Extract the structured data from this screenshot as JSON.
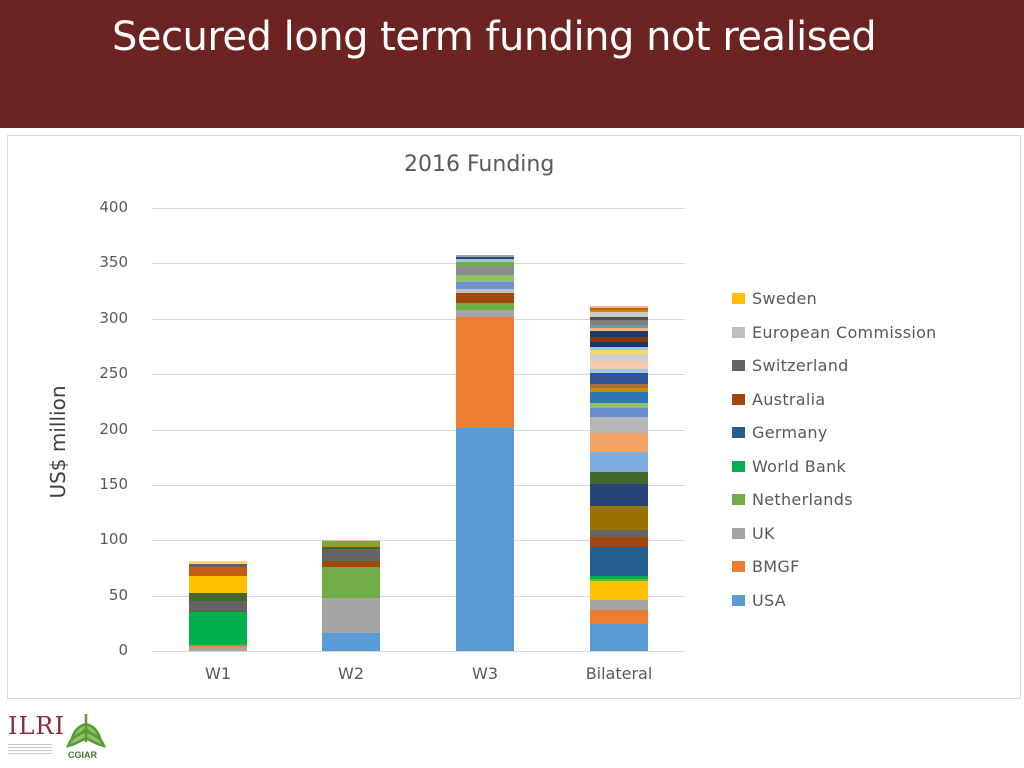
{
  "slide": {
    "title": "Secured long term funding not realised"
  },
  "chart_data": {
    "type": "bar",
    "stacked": true,
    "title": "2016 Funding",
    "xlabel": "",
    "ylabel": "US$ million",
    "ylim": [
      0,
      400
    ],
    "yticks": [
      0,
      50,
      100,
      150,
      200,
      250,
      300,
      350,
      400
    ],
    "grid": true,
    "legend_position": "right",
    "categories": [
      "W1",
      "W2",
      "W3",
      "Bilateral"
    ],
    "legend": [
      "Sweden",
      "European Commission",
      "Switzerland",
      "Australia",
      "Germany",
      "World Bank",
      "Netherlands",
      "UK",
      "BMGF",
      "USA"
    ],
    "colors": {
      "Sweden": "#ffc000",
      "European Commission": "#bfbfbf",
      "Switzerland": "#636363",
      "Australia": "#9e480e",
      "Germany": "#255e91",
      "World Bank": "#00b050",
      "Netherlands": "#70ad47",
      "UK": "#a5a5a5",
      "BMGF": "#ed7d31",
      "USA": "#5b9bd5"
    },
    "totals": [
      81,
      100,
      358,
      327
    ],
    "bars": [
      {
        "category": "W1",
        "segments": [
          {
            "name": "UK",
            "value": 4,
            "color": "#a5a5a5"
          },
          {
            "name": "BMGF",
            "value": 1,
            "color": "#ed7d31"
          },
          {
            "name": "World Bank",
            "value": 30,
            "color": "#00b050"
          },
          {
            "name": "Australia",
            "value": 1,
            "color": "#9e480e"
          },
          {
            "name": "Switzerland",
            "value": 9,
            "color": "#636363"
          },
          {
            "name": "other",
            "value": 7,
            "color": "#43682b"
          },
          {
            "name": "Sweden",
            "value": 16,
            "color": "#ffc000"
          },
          {
            "name": "other",
            "value": 8,
            "color": "#c55a11"
          },
          {
            "name": "other",
            "value": 3,
            "color": "#636363"
          },
          {
            "name": "other",
            "value": 2,
            "color": "#ffd966"
          }
        ]
      },
      {
        "category": "W2",
        "segments": [
          {
            "name": "USA",
            "value": 16,
            "color": "#5b9bd5"
          },
          {
            "name": "UK",
            "value": 32,
            "color": "#a5a5a5"
          },
          {
            "name": "Netherlands",
            "value": 28,
            "color": "#70ad47"
          },
          {
            "name": "Australia",
            "value": 5,
            "color": "#9e480e"
          },
          {
            "name": "Switzerland",
            "value": 11,
            "color": "#636363"
          },
          {
            "name": "other",
            "value": 2,
            "color": "#43682b"
          },
          {
            "name": "other",
            "value": 2,
            "color": "#bf9000"
          },
          {
            "name": "other",
            "value": 3,
            "color": "#70ad47"
          },
          {
            "name": "other",
            "value": 1,
            "color": "#f4b183"
          }
        ]
      },
      {
        "category": "W3",
        "segments": [
          {
            "name": "USA",
            "value": 201,
            "color": "#5b9bd5"
          },
          {
            "name": "BMGF",
            "value": 101,
            "color": "#ed7d31"
          },
          {
            "name": "UK",
            "value": 6,
            "color": "#a5a5a5"
          },
          {
            "name": "Netherlands",
            "value": 6,
            "color": "#70ad47"
          },
          {
            "name": "Australia",
            "value": 9,
            "color": "#9e480e"
          },
          {
            "name": "European Commission",
            "value": 4,
            "color": "#bfbfbf"
          },
          {
            "name": "other",
            "value": 6,
            "color": "#6f8fd8"
          },
          {
            "name": "other",
            "value": 7,
            "color": "#8fc167"
          },
          {
            "name": "Switzerland",
            "value": 8,
            "color": "#8c8c8c"
          },
          {
            "name": "other",
            "value": 3,
            "color": "#70ad47"
          },
          {
            "name": "other",
            "value": 3,
            "color": "#9dc3e6"
          },
          {
            "name": "other",
            "value": 2,
            "color": "#264478"
          },
          {
            "name": "other",
            "value": 2,
            "color": "#a5a5a5"
          }
        ]
      },
      {
        "category": "Bilateral",
        "segments": [
          {
            "name": "USA",
            "value": 24,
            "color": "#5b9bd5"
          },
          {
            "name": "BMGF",
            "value": 13,
            "color": "#ed7d31"
          },
          {
            "name": "UK",
            "value": 9,
            "color": "#a5a5a5"
          },
          {
            "name": "Sweden",
            "value": 17,
            "color": "#ffc000"
          },
          {
            "name": "Netherlands",
            "value": 2,
            "color": "#70ad47"
          },
          {
            "name": "World Bank",
            "value": 3,
            "color": "#00b050"
          },
          {
            "name": "Germany",
            "value": 26,
            "color": "#255e91"
          },
          {
            "name": "Australia",
            "value": 9,
            "color": "#9e480e"
          },
          {
            "name": "Switzerland",
            "value": 6,
            "color": "#636363"
          },
          {
            "name": "other",
            "value": 22,
            "color": "#997300"
          },
          {
            "name": "other",
            "value": 20,
            "color": "#264478"
          },
          {
            "name": "other",
            "value": 11,
            "color": "#43682b"
          },
          {
            "name": "other",
            "value": 18,
            "color": "#7cafdd"
          },
          {
            "name": "other",
            "value": 17,
            "color": "#f4a367"
          },
          {
            "name": "European Commission",
            "value": 14,
            "color": "#b7b7b7"
          },
          {
            "name": "other",
            "value": 9,
            "color": "#698ed0"
          },
          {
            "name": "other",
            "value": 4,
            "color": "#8cc168"
          },
          {
            "name": "other",
            "value": 10,
            "color": "#2e75b6"
          },
          {
            "name": "other",
            "value": 4,
            "color": "#bf9000"
          },
          {
            "name": "other",
            "value": 3,
            "color": "#a86e3c"
          },
          {
            "name": "other",
            "value": 10,
            "color": "#2f5597"
          },
          {
            "name": "other",
            "value": 4,
            "color": "#9dc3e6"
          },
          {
            "name": "other",
            "value": 7,
            "color": "#f8cbad"
          },
          {
            "name": "other",
            "value": 6,
            "color": "#d0cece"
          },
          {
            "name": "other",
            "value": 4,
            "color": "#ffd966"
          },
          {
            "name": "other",
            "value": 3,
            "color": "#9dc3e6"
          },
          {
            "name": "other",
            "value": 4,
            "color": "#1f3864"
          },
          {
            "name": "other",
            "value": 5,
            "color": "#843c0c"
          },
          {
            "name": "other",
            "value": 5,
            "color": "#203864"
          },
          {
            "name": "other",
            "value": 3,
            "color": "#f4b183"
          },
          {
            "name": "other",
            "value": 3,
            "color": "#6aa0a0"
          },
          {
            "name": "other",
            "value": 4,
            "color": "#7f7f7f"
          },
          {
            "name": "other",
            "value": 3,
            "color": "#525252"
          },
          {
            "name": "other",
            "value": 4,
            "color": "#c9c9c9"
          },
          {
            "name": "other",
            "value": 2,
            "color": "#bf9000"
          },
          {
            "name": "other",
            "value": 2,
            "color": "#c55a11"
          },
          {
            "name": "other",
            "value": 2,
            "color": "#f4b183"
          }
        ]
      }
    ]
  },
  "footer": {
    "logo_left": "ILRI",
    "logo_right": "CGIAR"
  }
}
